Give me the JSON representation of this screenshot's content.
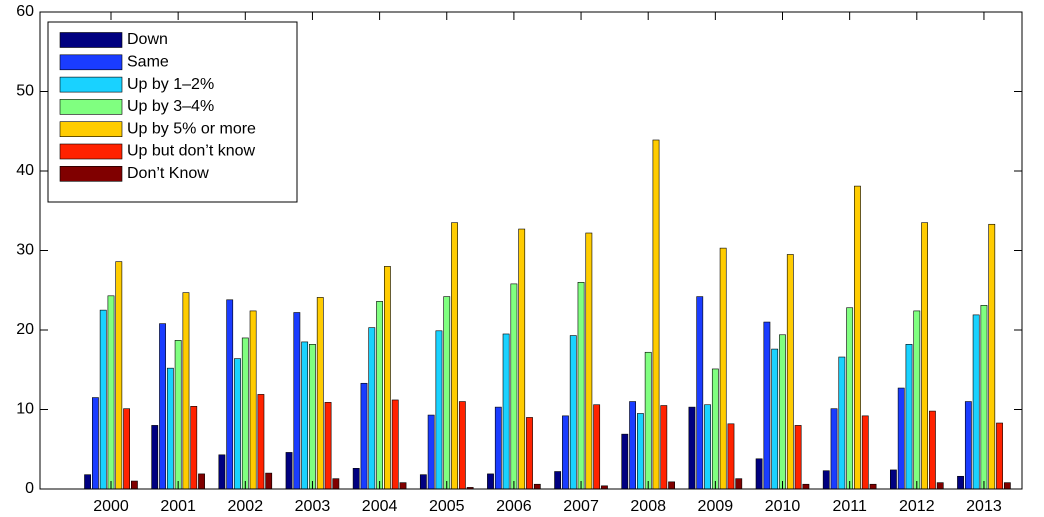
{
  "chart_data": {
    "type": "bar",
    "categories": [
      "2000",
      "2001",
      "2002",
      "2003",
      "2004",
      "2005",
      "2006",
      "2007",
      "2008",
      "2009",
      "2010",
      "2011",
      "2012",
      "2013"
    ],
    "series": [
      {
        "name": "Down",
        "color": "#000080",
        "values": [
          1.8,
          8.0,
          4.3,
          4.6,
          2.6,
          1.8,
          1.9,
          2.2,
          6.9,
          10.3,
          3.8,
          2.3,
          2.4,
          1.6
        ]
      },
      {
        "name": "Same",
        "color": "#1a3cff",
        "values": [
          11.5,
          20.8,
          23.8,
          22.2,
          13.3,
          9.3,
          10.3,
          9.2,
          11.0,
          24.2,
          21.0,
          10.1,
          12.7,
          11.0
        ]
      },
      {
        "name": "Up by 1–2%",
        "color": "#19d2ff",
        "values": [
          22.5,
          15.2,
          16.4,
          18.5,
          20.3,
          19.9,
          19.5,
          19.3,
          9.5,
          10.6,
          17.6,
          16.6,
          18.2,
          21.9
        ]
      },
      {
        "name": "Up by 3–4%",
        "color": "#80ff80",
        "values": [
          24.3,
          18.7,
          19.0,
          18.2,
          23.6,
          24.2,
          25.8,
          26.0,
          17.2,
          15.1,
          19.4,
          22.8,
          22.4,
          23.1
        ]
      },
      {
        "name": "Up by 5% or more",
        "color": "#ffcc00",
        "values": [
          28.6,
          24.7,
          22.4,
          24.1,
          28.0,
          33.5,
          32.7,
          32.2,
          43.9,
          30.3,
          29.5,
          38.1,
          33.5,
          33.3
        ]
      },
      {
        "name": "Up but don’t know",
        "color": "#ff2200",
        "values": [
          10.1,
          10.4,
          11.9,
          10.9,
          11.2,
          11.0,
          9.0,
          10.6,
          10.5,
          8.2,
          8.0,
          9.2,
          9.8,
          8.3
        ]
      },
      {
        "name": "Don’t Know",
        "color": "#800000",
        "values": [
          1.0,
          1.9,
          2.0,
          1.3,
          0.8,
          0.2,
          0.6,
          0.4,
          0.9,
          1.3,
          0.6,
          0.6,
          0.8,
          0.8
        ]
      }
    ],
    "ylim": [
      0,
      60
    ],
    "yticks": [
      0,
      10,
      20,
      30,
      40,
      50,
      60
    ],
    "legend": "upper left"
  }
}
